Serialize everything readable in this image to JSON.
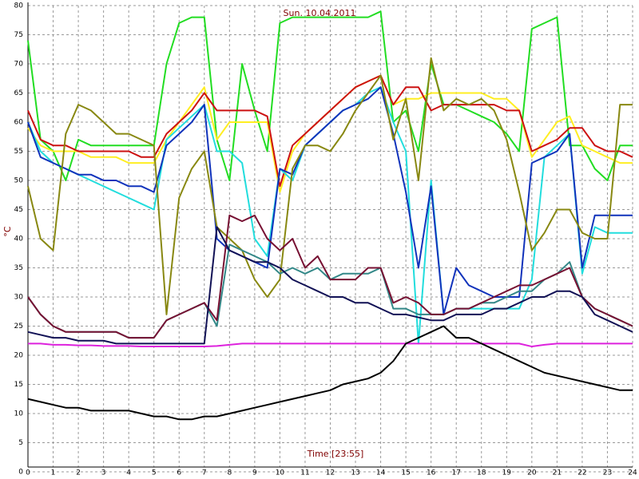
{
  "chart_data": {
    "type": "line",
    "title": "Sun. 10.04.2011",
    "x_label": "Time [23:55]",
    "y_label": "°C",
    "x": [
      0,
      0.5,
      1,
      1.5,
      2,
      2.5,
      3,
      3.5,
      4,
      4.5,
      5,
      5.5,
      6,
      6.5,
      7,
      7.5,
      8,
      8.5,
      9,
      9.5,
      10,
      10.5,
      11,
      11.5,
      12,
      12.5,
      13,
      13.5,
      14,
      14.5,
      15,
      15.5,
      16,
      16.5,
      17,
      17.5,
      18,
      18.5,
      19,
      19.5,
      20,
      20.5,
      21,
      21.5,
      22,
      22.5,
      23,
      23.5,
      24
    ],
    "xlim": [
      0,
      24
    ],
    "xticks": [
      0,
      1,
      2,
      3,
      4,
      5,
      6,
      7,
      8,
      9,
      10,
      11,
      12,
      13,
      14,
      15,
      16,
      17,
      18,
      19,
      20,
      21,
      22,
      23,
      24
    ],
    "ylim": [
      0,
      80
    ],
    "yticks": [
      0,
      5,
      10,
      15,
      20,
      25,
      30,
      35,
      40,
      45,
      50,
      55,
      60,
      65,
      70,
      75,
      80
    ],
    "grid": true,
    "series": [
      {
        "color": "#22dd22",
        "values": [
          74,
          57,
          55,
          50,
          57,
          56,
          56,
          56,
          56,
          56,
          56,
          70,
          77,
          78,
          78,
          57,
          50,
          70,
          62,
          55,
          77,
          78,
          78,
          78,
          78,
          78,
          78,
          78,
          79,
          60,
          62,
          55,
          70,
          63,
          63,
          62,
          61,
          60,
          58,
          55,
          76,
          77,
          78,
          56,
          56,
          52,
          50,
          56,
          56
        ]
      },
      {
        "color": "#ffee22",
        "values": [
          59,
          56,
          55,
          55,
          55,
          54,
          54,
          54,
          53,
          53,
          53,
          57,
          60,
          63,
          66,
          57,
          60,
          60,
          60,
          60,
          48,
          55,
          58,
          60,
          62,
          64,
          66,
          67,
          68,
          63,
          64,
          64,
          65,
          65,
          65,
          65,
          65,
          64,
          64,
          62,
          54,
          57,
          60,
          61,
          56,
          55,
          54,
          53,
          53
        ]
      },
      {
        "color": "#cc1111",
        "values": [
          62,
          57,
          56,
          56,
          55,
          55,
          55,
          55,
          55,
          54,
          54,
          58,
          60,
          62,
          65,
          62,
          62,
          62,
          62,
          61,
          49,
          56,
          58,
          60,
          62,
          64,
          66,
          67,
          68,
          63,
          66,
          66,
          62,
          63,
          63,
          63,
          63,
          63,
          62,
          62,
          55,
          56,
          57,
          59,
          59,
          56,
          55,
          55,
          54
        ]
      },
      {
        "color": "#22dddd",
        "values": [
          60,
          55,
          53,
          52,
          51,
          50,
          49,
          48,
          47,
          46,
          45,
          57,
          59,
          61,
          63,
          55,
          55,
          53,
          40,
          37,
          52,
          50,
          56,
          58,
          60,
          62,
          63,
          65,
          66,
          60,
          55,
          22,
          50,
          27,
          28,
          28,
          28,
          28,
          28,
          28,
          33,
          54,
          56,
          58,
          34,
          42,
          41,
          41,
          41
        ]
      },
      {
        "color": "#1133bb",
        "values": [
          60,
          54,
          53,
          52,
          51,
          51,
          50,
          50,
          49,
          49,
          48,
          56,
          58,
          60,
          63,
          40,
          38,
          37,
          36,
          35,
          52,
          51,
          56,
          58,
          60,
          62,
          63,
          64,
          66,
          58,
          48,
          35,
          49,
          27,
          35,
          32,
          31,
          30,
          30,
          30,
          53,
          54,
          55,
          58,
          35,
          44,
          44,
          44,
          44
        ]
      },
      {
        "color": "#888811",
        "values": [
          49,
          40,
          38,
          58,
          63,
          62,
          60,
          58,
          58,
          57,
          56,
          27,
          47,
          52,
          55,
          42,
          40,
          38,
          33,
          30,
          33,
          52,
          56,
          56,
          55,
          58,
          62,
          65,
          68,
          57,
          64,
          50,
          71,
          62,
          64,
          63,
          64,
          62,
          57,
          48,
          38,
          41,
          45,
          45,
          41,
          40,
          40,
          63,
          63
        ]
      },
      {
        "color": "#338888",
        "values": [
          30,
          27,
          25,
          24,
          24,
          24,
          24,
          24,
          23,
          23,
          23,
          26,
          27,
          28,
          29,
          25,
          39,
          38,
          37,
          36,
          34,
          35,
          34,
          35,
          33,
          34,
          34,
          34,
          35,
          28,
          28,
          27,
          27,
          27,
          28,
          28,
          29,
          29,
          30,
          31,
          31,
          33,
          34,
          36,
          30,
          28,
          27,
          26,
          25
        ]
      },
      {
        "color": "#771133",
        "values": [
          30,
          27,
          25,
          24,
          24,
          24,
          24,
          24,
          23,
          23,
          23,
          26,
          27,
          28,
          29,
          26,
          44,
          43,
          44,
          40,
          38,
          40,
          35,
          37,
          33,
          33,
          33,
          35,
          35,
          29,
          30,
          29,
          27,
          27,
          28,
          28,
          29,
          30,
          31,
          32,
          32,
          33,
          34,
          35,
          30,
          28,
          27,
          26,
          25
        ]
      },
      {
        "color": "#111155",
        "values": [
          24,
          23.5,
          23,
          23,
          22.5,
          22.5,
          22.5,
          22,
          22,
          22,
          22,
          22,
          22,
          22,
          22,
          42,
          38,
          37,
          36,
          36,
          35,
          33,
          32,
          31,
          30,
          30,
          29,
          29,
          28,
          27,
          27,
          26.5,
          26,
          26,
          27,
          27,
          27,
          28,
          28,
          29,
          30,
          30,
          31,
          31,
          30,
          27,
          26,
          25,
          24
        ]
      },
      {
        "color": "#dd22dd",
        "values": [
          22,
          22,
          21.8,
          21.8,
          21.7,
          21.7,
          21.6,
          21.6,
          21.6,
          21.5,
          21.5,
          21.5,
          21.5,
          21.5,
          21.5,
          21.6,
          21.8,
          22,
          22,
          22,
          22,
          22,
          22,
          22,
          22,
          22,
          22,
          22,
          22,
          22,
          22,
          22,
          22,
          22,
          22,
          22,
          22,
          22,
          22,
          22,
          21.5,
          21.8,
          22,
          22,
          22,
          22,
          22,
          22,
          22
        ]
      },
      {
        "color": "#000000",
        "values": [
          12.5,
          12,
          11.5,
          11,
          11,
          10.5,
          10.5,
          10.5,
          10.5,
          10,
          9.5,
          9.5,
          9,
          9,
          9.5,
          9.5,
          10,
          10.5,
          11,
          11.5,
          12,
          12.5,
          13,
          13.5,
          14,
          15,
          15.5,
          16,
          17,
          19,
          22,
          23,
          24,
          25,
          23,
          23,
          22,
          21,
          20,
          19,
          18,
          17,
          16.5,
          16,
          15.5,
          15,
          14.5,
          14,
          14
        ]
      }
    ]
  }
}
